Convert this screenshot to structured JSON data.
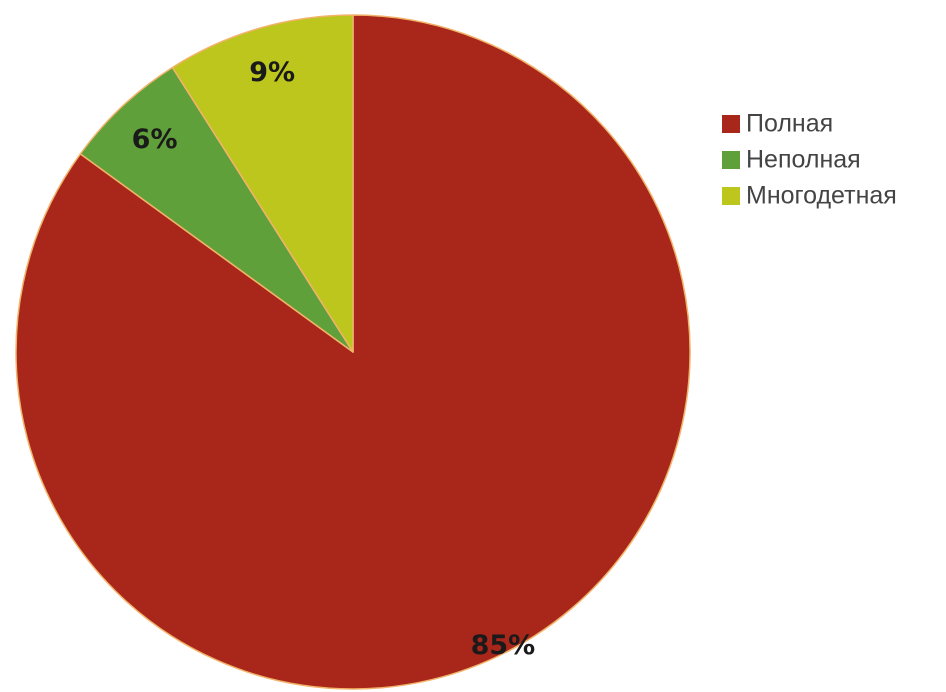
{
  "chart_data": {
    "type": "pie",
    "categories": [
      "Полная",
      "Неполная",
      "Многодетная"
    ],
    "values": [
      85,
      6,
      9
    ],
    "value_labels": [
      "85%",
      "6%",
      "9%"
    ],
    "colors": [
      "#a9271a",
      "#5fa03a",
      "#bcc61d"
    ],
    "slice_border_color": "#f2b36a",
    "start_direction": "top",
    "direction": "clockwise",
    "legend_position": "right-top"
  }
}
